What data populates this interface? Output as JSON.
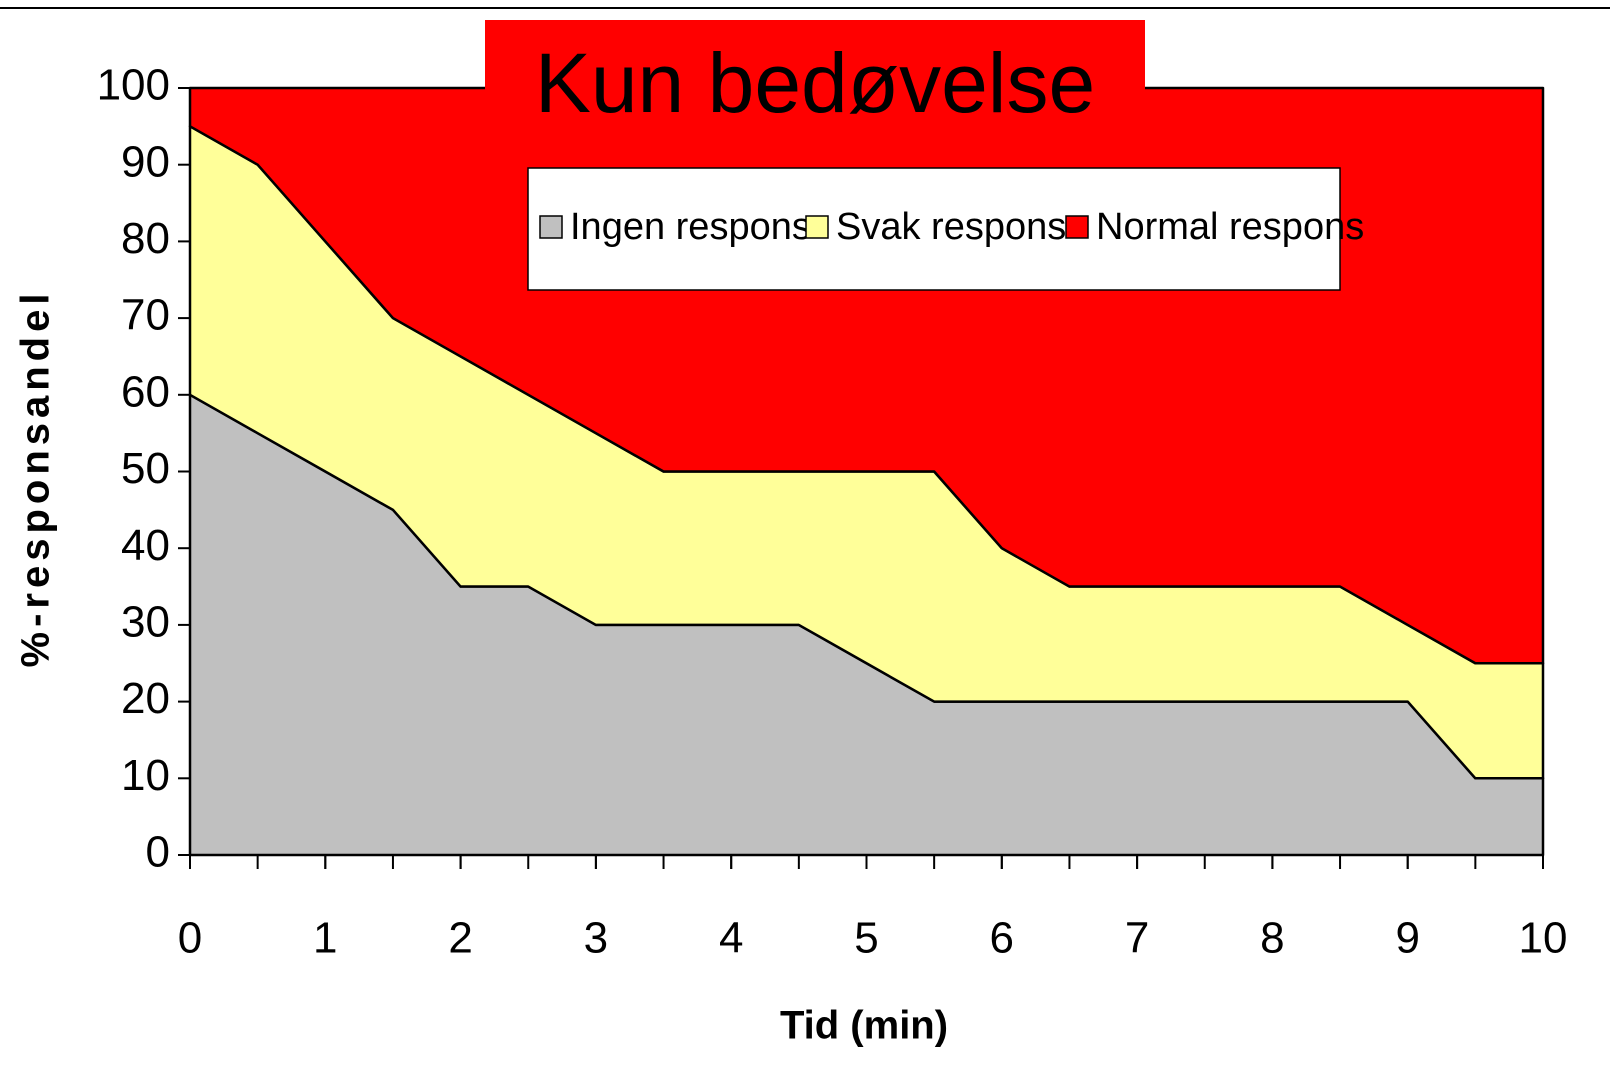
{
  "chart_data": {
    "type": "stacked_area",
    "title": "Kun bedøvelse",
    "x_label": "Tid (min)",
    "y_label": "%-responsandel",
    "x": [
      0,
      0.5,
      1,
      1.5,
      2,
      2.5,
      3,
      3.5,
      4,
      4.5,
      5,
      5.5,
      6,
      6.5,
      7,
      7.5,
      8,
      8.5,
      9,
      9.5,
      10
    ],
    "series": [
      {
        "name": "Ingen respons",
        "color": "#c0c0c0",
        "values": [
          60,
          55,
          50,
          45,
          35,
          35,
          30,
          30,
          30,
          30,
          25,
          20,
          20,
          20,
          20,
          20,
          20,
          20,
          20,
          10,
          10
        ]
      },
      {
        "name": "Svak respons",
        "color": "#ffff99",
        "values": [
          35,
          35,
          30,
          25,
          30,
          25,
          25,
          20,
          20,
          20,
          25,
          30,
          20,
          15,
          15,
          15,
          15,
          15,
          10,
          15,
          15
        ]
      },
      {
        "name": "Normal respons",
        "color": "#ff0000",
        "values": [
          5,
          10,
          20,
          30,
          35,
          40,
          45,
          50,
          50,
          50,
          50,
          50,
          60,
          65,
          65,
          65,
          65,
          65,
          70,
          75,
          75
        ]
      }
    ],
    "xlim": [
      0,
      10
    ],
    "xticks": [
      0,
      1,
      2,
      3,
      4,
      5,
      6,
      7,
      8,
      9,
      10
    ],
    "ylim": [
      0,
      100
    ],
    "yticks": [
      0,
      10,
      20,
      30,
      40,
      50,
      60,
      70,
      80,
      90,
      100
    ],
    "legend": "top"
  }
}
